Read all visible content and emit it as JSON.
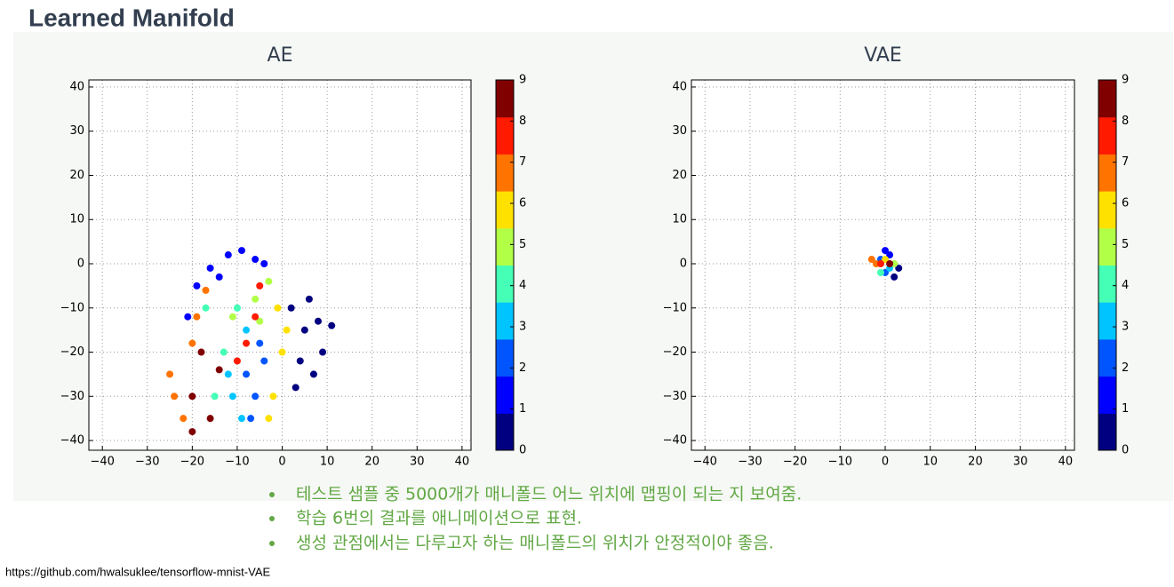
{
  "title": "Learned Manifold",
  "chart_data": [
    {
      "type": "scatter",
      "title": "AE",
      "grid": true,
      "colorbar": true,
      "xlim": [
        -43,
        42
      ],
      "ylim": [
        -42.2,
        41.6
      ],
      "xticks": [
        {
          "value": -40,
          "label": "−40"
        },
        {
          "value": -30,
          "label": "−30"
        },
        {
          "value": -20,
          "label": "−20"
        },
        {
          "value": -10,
          "label": "−10"
        },
        0,
        10,
        20,
        30,
        40
      ],
      "yticks": [
        {
          "value": -40,
          "label": "−40"
        },
        {
          "value": -30,
          "label": "−30"
        },
        {
          "value": -20,
          "label": "−20"
        },
        {
          "value": -10,
          "label": "−10"
        },
        0,
        10,
        20,
        30,
        40
      ],
      "series": [
        {
          "name": "0",
          "color": "#000080",
          "x": [
            2,
            5,
            8,
            11,
            4,
            7,
            3,
            9,
            6
          ],
          "y": [
            -10,
            -15,
            -13,
            -14,
            -22,
            -25,
            -28,
            -20,
            -8
          ]
        },
        {
          "name": "1",
          "color": "#0000ff",
          "x": [
            -21,
            -19,
            -16,
            -12,
            -9,
            -6,
            -4,
            -14
          ],
          "y": [
            -12,
            -5,
            -1,
            2,
            3,
            1,
            0,
            -3
          ]
        },
        {
          "name": "2",
          "color": "#0055ff",
          "x": [
            -8,
            -6,
            -4,
            -7,
            -5
          ],
          "y": [
            -25,
            -30,
            -22,
            -35,
            -18
          ]
        },
        {
          "name": "3",
          "color": "#00c4ff",
          "x": [
            -11,
            -9,
            -12,
            -8
          ],
          "y": [
            -30,
            -35,
            -25,
            -15
          ]
        },
        {
          "name": "4",
          "color": "#44ffb5",
          "x": [
            -13,
            -15,
            -17,
            -10
          ],
          "y": [
            -20,
            -30,
            -10,
            -10
          ]
        },
        {
          "name": "5",
          "color": "#b2ff48",
          "x": [
            -6,
            -3,
            -11,
            -5
          ],
          "y": [
            -8,
            -4,
            -12,
            -13
          ]
        },
        {
          "name": "6",
          "color": "#ffe100",
          "x": [
            -1,
            0,
            -2,
            1,
            -3
          ],
          "y": [
            -10,
            -20,
            -30,
            -15,
            -35
          ]
        },
        {
          "name": "7",
          "color": "#ff7300",
          "x": [
            -25,
            -22,
            -20,
            -24,
            -17,
            -19
          ],
          "y": [
            -25,
            -35,
            -18,
            -30,
            -6,
            -12
          ]
        },
        {
          "name": "8",
          "color": "#ff1a00",
          "x": [
            -8,
            -6,
            -10,
            -5
          ],
          "y": [
            -18,
            -12,
            -22,
            -5
          ]
        },
        {
          "name": "9",
          "color": "#800000",
          "x": [
            -20,
            -18,
            -14,
            -16,
            -20
          ],
          "y": [
            -30,
            -20,
            -24,
            -35,
            -38
          ]
        }
      ]
    },
    {
      "type": "scatter",
      "title": "VAE",
      "grid": true,
      "colorbar": true,
      "xlim": [
        -43,
        42
      ],
      "ylim": [
        -42.2,
        41.6
      ],
      "xticks": [
        {
          "value": -40,
          "label": "−40"
        },
        {
          "value": -30,
          "label": "−30"
        },
        {
          "value": -20,
          "label": "−20"
        },
        {
          "value": -10,
          "label": "−10"
        },
        0,
        10,
        20,
        30,
        40
      ],
      "yticks": [
        {
          "value": -40,
          "label": "−40"
        },
        {
          "value": -30,
          "label": "−30"
        },
        {
          "value": -20,
          "label": "−20"
        },
        {
          "value": -10,
          "label": "−10"
        },
        0,
        10,
        20,
        30,
        40
      ],
      "series": [
        {
          "name": "0",
          "color": "#000080",
          "x": [
            3,
            2
          ],
          "y": [
            -1,
            -3
          ]
        },
        {
          "name": "1",
          "color": "#0000ff",
          "x": [
            0,
            1
          ],
          "y": [
            3,
            2
          ]
        },
        {
          "name": "2",
          "color": "#0055ff",
          "x": [
            -1,
            0
          ],
          "y": [
            1,
            -2
          ]
        },
        {
          "name": "3",
          "color": "#00c4ff",
          "x": [
            1
          ],
          "y": [
            -1
          ]
        },
        {
          "name": "4",
          "color": "#44ffb5",
          "x": [
            -1
          ],
          "y": [
            -2
          ]
        },
        {
          "name": "5",
          "color": "#b2ff48",
          "x": [
            2
          ],
          "y": [
            0
          ]
        },
        {
          "name": "6",
          "color": "#ffe100",
          "x": [
            0
          ],
          "y": [
            1
          ]
        },
        {
          "name": "7",
          "color": "#ff7300",
          "x": [
            -2,
            -3
          ],
          "y": [
            0,
            1
          ]
        },
        {
          "name": "8",
          "color": "#ff1a00",
          "x": [
            -1
          ],
          "y": [
            0
          ]
        },
        {
          "name": "9",
          "color": "#800000",
          "x": [
            1
          ],
          "y": [
            0
          ]
        }
      ]
    }
  ],
  "bullets": [
    "테스트 샘플 중 5000개가 매니폴드 어느 위치에 맵핑이 되는 지 보여줌.",
    "학습 6번의 결과를 애니메이션으로 표현.",
    "생성 관점에서는 다루고자 하는 매니폴드의 위치가 안정적이야 좋음."
  ],
  "footer": "https://github.com/hwalsuklee/tensorflow-mnist-VAE"
}
